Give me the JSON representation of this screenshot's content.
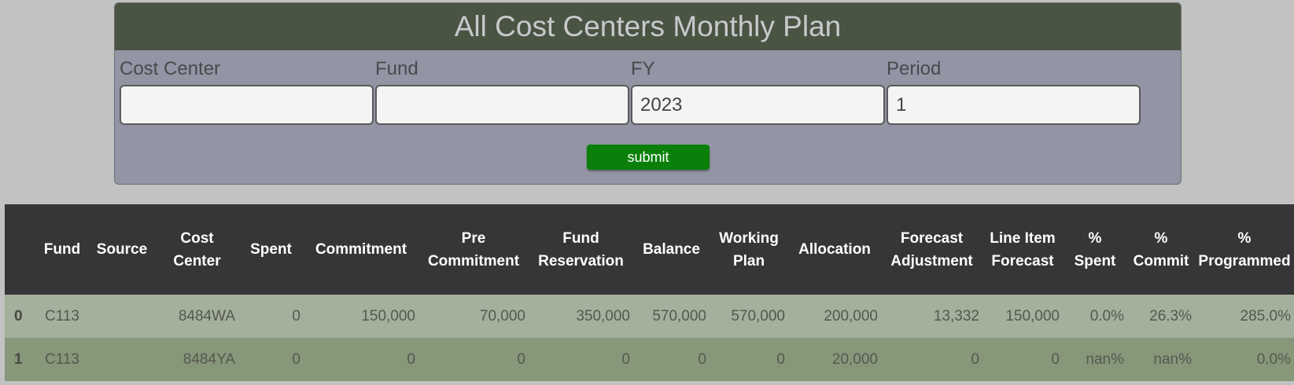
{
  "form": {
    "title": "All Cost Centers Monthly Plan",
    "fields": [
      {
        "label": "Cost Center",
        "value": ""
      },
      {
        "label": "Fund",
        "value": ""
      },
      {
        "label": "FY",
        "value": "2023"
      },
      {
        "label": "Period",
        "value": "1"
      }
    ],
    "submit_label": "submit"
  },
  "table": {
    "headers": [
      "",
      "Fund",
      "Source",
      "Cost Center",
      "Spent",
      "Commitment",
      "Pre Commitment",
      "Fund Reservation",
      "Balance",
      "Working Plan",
      "Allocation",
      "Forecast Adjustment",
      "Line Item Forecast",
      "% Spent",
      "% Commit",
      "% Programmed"
    ],
    "rows": [
      [
        "0",
        "C113",
        "",
        "8484WA",
        "0",
        "150,000",
        "70,000",
        "350,000",
        "570,000",
        "570,000",
        "200,000",
        "13,332",
        "150,000",
        "0.0%",
        "26.3%",
        "285.0%"
      ],
      [
        "1",
        "C113",
        "",
        "8484YA",
        "0",
        "0",
        "0",
        "0",
        "0",
        "0",
        "20,000",
        "0",
        "0",
        "nan%",
        "nan%",
        "0.0%"
      ]
    ]
  }
}
